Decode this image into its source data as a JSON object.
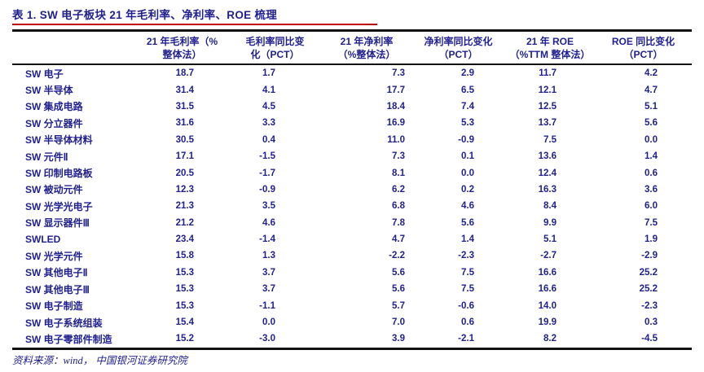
{
  "page": {
    "title": "表 1. SW 电子板块 21 年毛利率、净利率、ROE 梳理",
    "source_note": "资料来源：wind， 中国银河证券研究院"
  },
  "colors": {
    "text_navy": "#1f1f8f",
    "title_underline_red": "#c00000",
    "rule_dark": "#111111",
    "background": "#ffffff"
  },
  "table": {
    "header": [
      {
        "line1": "21 年毛利率（%",
        "line2": "整体法）"
      },
      {
        "line1": "毛利率同比变",
        "line2": "化（PCT）"
      },
      {
        "line1": "21 年净利率",
        "line2": "（%整体法）"
      },
      {
        "line1": "净利率同比变化",
        "line2": "（PCT）"
      },
      {
        "line1": "21 年 ROE",
        "line2": "（%TTM 整体法）"
      },
      {
        "line1": "ROE 同比变化",
        "line2": "（PCT）"
      }
    ],
    "rows": [
      {
        "label": "SW 电子",
        "values": [
          "18.7",
          "1.7",
          "7.3",
          "2.9",
          "11.7",
          "4.2"
        ]
      },
      {
        "label": "SW 半导体",
        "values": [
          "31.4",
          "4.1",
          "17.7",
          "6.5",
          "12.1",
          "4.7"
        ]
      },
      {
        "label": "SW 集成电路",
        "values": [
          "31.5",
          "4.5",
          "18.4",
          "7.4",
          "12.5",
          "5.1"
        ]
      },
      {
        "label": "SW 分立器件",
        "values": [
          "31.6",
          "3.3",
          "16.9",
          "5.3",
          "13.7",
          "5.6"
        ]
      },
      {
        "label": "SW 半导体材料",
        "values": [
          "30.5",
          "0.4",
          "11.0",
          "-0.9",
          "7.5",
          "0.0"
        ]
      },
      {
        "label": "SW 元件Ⅱ",
        "values": [
          "17.1",
          "-1.5",
          "7.3",
          "0.1",
          "13.6",
          "1.4"
        ]
      },
      {
        "label": "SW 印制电路板",
        "values": [
          "20.5",
          "-1.7",
          "8.1",
          "0.0",
          "12.4",
          "0.6"
        ]
      },
      {
        "label": "SW 被动元件",
        "values": [
          "12.3",
          "-0.9",
          "6.2",
          "0.2",
          "16.3",
          "3.6"
        ]
      },
      {
        "label": "SW 光学光电子",
        "values": [
          "21.3",
          "3.5",
          "6.8",
          "4.6",
          "8.4",
          "6.0"
        ]
      },
      {
        "label": "SW 显示器件Ⅲ",
        "values": [
          "21.2",
          "4.6",
          "7.8",
          "5.6",
          "9.9",
          "7.5"
        ]
      },
      {
        "label": "SWLED",
        "values": [
          "23.4",
          "-1.4",
          "4.7",
          "1.4",
          "5.1",
          "1.9"
        ]
      },
      {
        "label": "SW 光学元件",
        "values": [
          "15.8",
          "1.3",
          "-2.2",
          "-2.3",
          "-2.7",
          "-2.9"
        ]
      },
      {
        "label": "SW 其他电子Ⅱ",
        "values": [
          "15.3",
          "3.7",
          "5.6",
          "7.5",
          "16.6",
          "25.2"
        ]
      },
      {
        "label": "SW 其他电子Ⅲ",
        "values": [
          "15.3",
          "3.7",
          "5.6",
          "7.5",
          "16.6",
          "25.2"
        ]
      },
      {
        "label": "SW 电子制造",
        "values": [
          "15.3",
          "-1.1",
          "5.7",
          "-0.6",
          "14.0",
          "-2.3"
        ]
      },
      {
        "label": "SW 电子系统组装",
        "values": [
          "15.4",
          "0.0",
          "7.0",
          "0.6",
          "19.9",
          "0.3"
        ]
      },
      {
        "label": "SW 电子零部件制造",
        "values": [
          "15.2",
          "-3.0",
          "3.9",
          "-2.1",
          "8.2",
          "-4.5"
        ]
      }
    ]
  }
}
